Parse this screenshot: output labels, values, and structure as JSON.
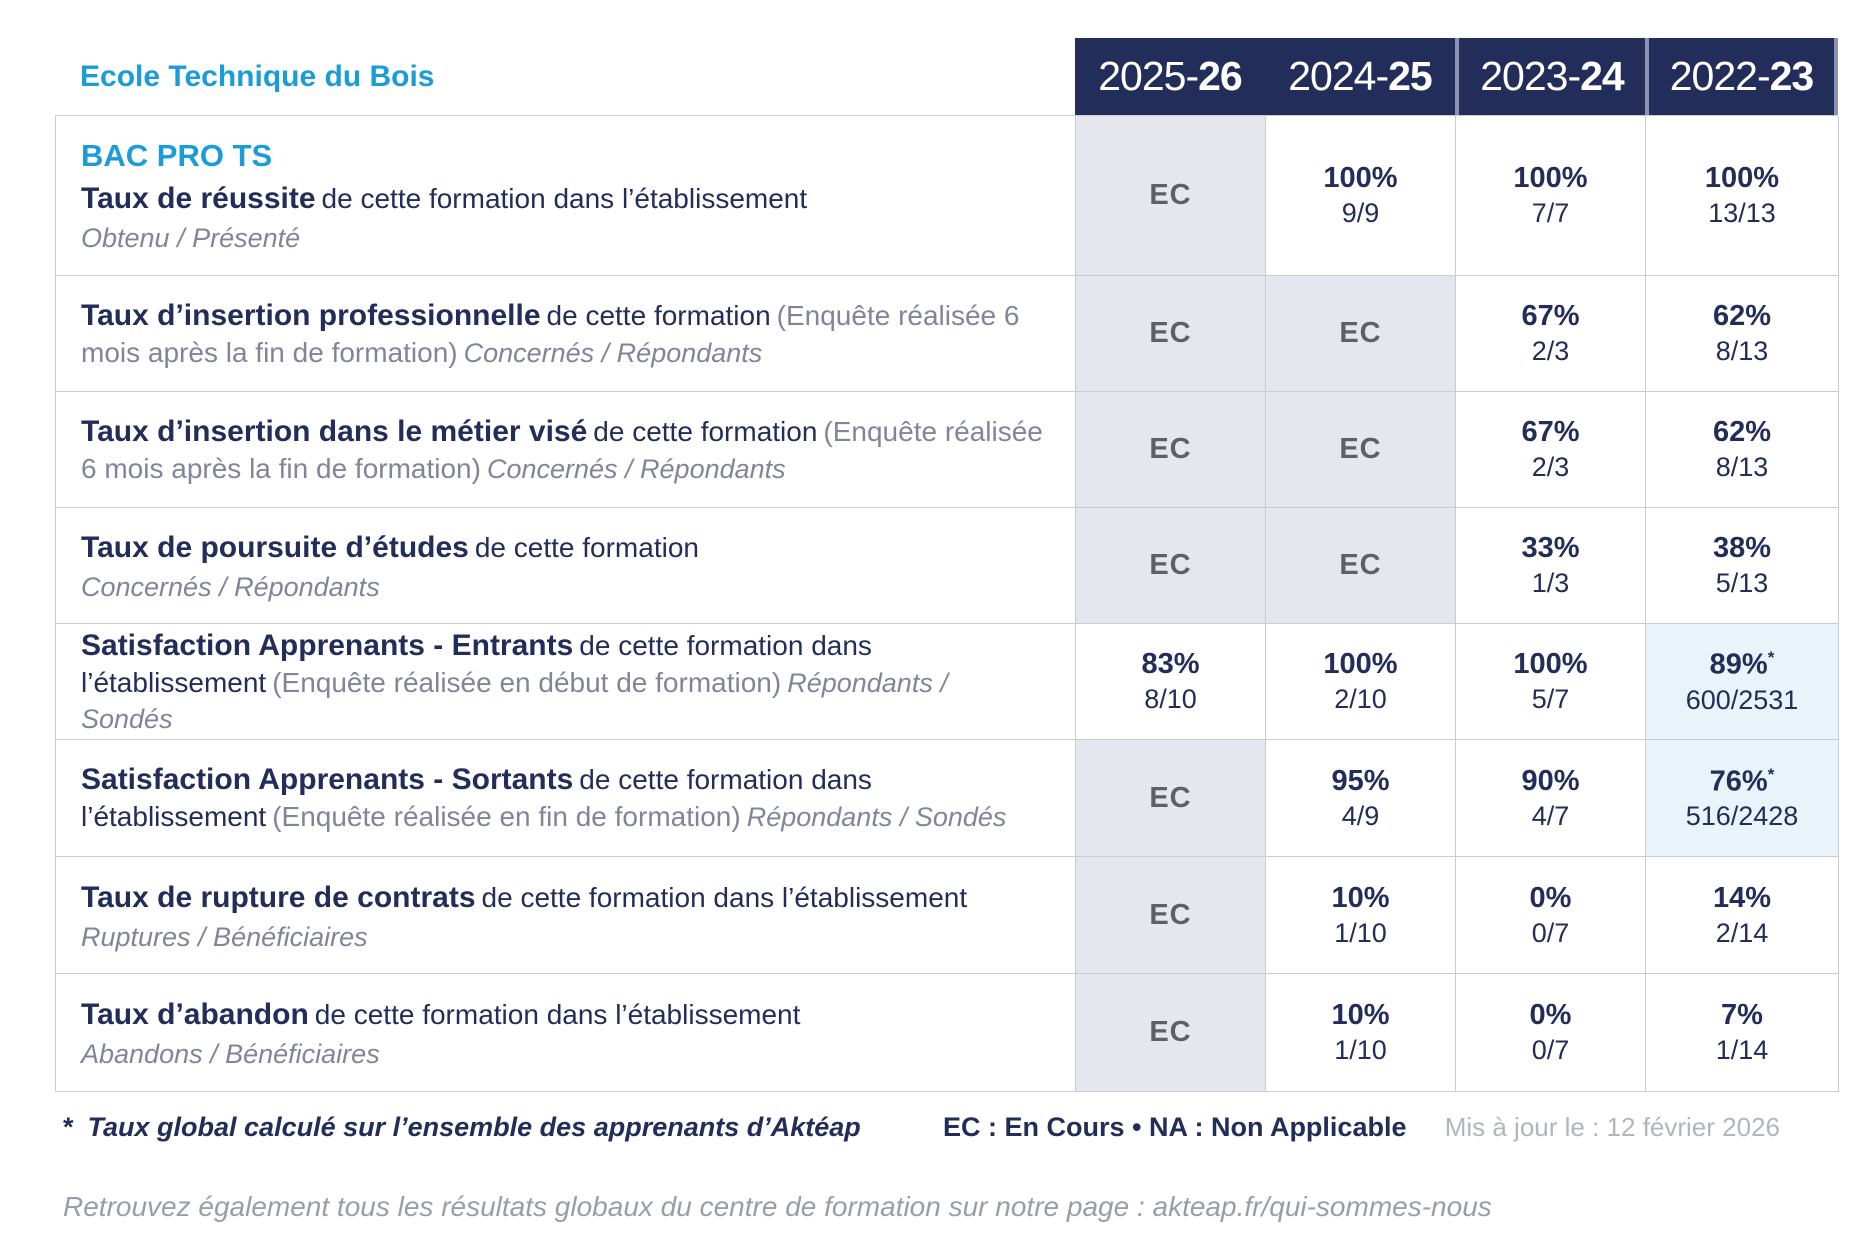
{
  "page": {
    "title": "Ecole Technique du Bois",
    "footnote_star": "*",
    "footnote": "Taux global calculé sur l’ensemble des apprenants d’Aktéap",
    "legend": "EC : En Cours  •  NA : Non Applicable",
    "updated": "Mis à jour le : 12 février 2026",
    "bottom_line": "Retrouvez également tous les résultats globaux du centre de formation sur notre page : akteap.fr/qui-sommes-nous"
  },
  "colors": {
    "accent_blue": "#1a9cd8",
    "navy": "#232d5a",
    "ec_cell_bg": "#e6e6ef",
    "highlight_cell_bg": "#e9f3fa",
    "grid_border": "#c9cbd6"
  },
  "columns": [
    {
      "prefix": "2025-",
      "bold": "26"
    },
    {
      "prefix": "2024-",
      "bold": "25"
    },
    {
      "prefix": "2023-",
      "bold": "24"
    },
    {
      "prefix": "2022-",
      "bold": "23"
    }
  ],
  "rows": [
    {
      "heading": "BAC PRO TS",
      "label_bold": "Taux de réussite",
      "label_normal": "de cette formation dans l’établissement",
      "label_paren": "",
      "label_sub": "Obtenu / Présenté",
      "sub_block": true,
      "cells": [
        {
          "ec": true,
          "text": "EC"
        },
        {
          "pct": "100%",
          "frac": "9/9"
        },
        {
          "pct": "100%",
          "frac": "7/7"
        },
        {
          "pct": "100%",
          "frac": "13/13"
        }
      ]
    },
    {
      "heading": "",
      "label_bold": "Taux d’insertion professionnelle",
      "label_normal": "de cette formation",
      "label_paren": "(Enquête réalisée 6 mois après la fin de formation)",
      "label_sub": "Concernés / Répondants",
      "sub_block": false,
      "cells": [
        {
          "ec": true,
          "text": "EC"
        },
        {
          "ec": true,
          "text": "EC"
        },
        {
          "pct": "67%",
          "frac": "2/3"
        },
        {
          "pct": "62%",
          "frac": "8/13"
        }
      ]
    },
    {
      "heading": "",
      "label_bold": "Taux d’insertion dans le métier visé",
      "label_normal": "de cette formation",
      "label_paren": "(Enquête réalisée 6 mois après la fin de formation)",
      "label_sub": "Concernés / Répondants",
      "sub_block": false,
      "cells": [
        {
          "ec": true,
          "text": "EC"
        },
        {
          "ec": true,
          "text": "EC"
        },
        {
          "pct": "67%",
          "frac": "2/3"
        },
        {
          "pct": "62%",
          "frac": "8/13"
        }
      ]
    },
    {
      "heading": "",
      "label_bold": "Taux de poursuite d’études",
      "label_normal": "de cette formation",
      "label_paren": "",
      "label_sub": "Concernés / Répondants",
      "sub_block": true,
      "cells": [
        {
          "ec": true,
          "text": "EC"
        },
        {
          "ec": true,
          "text": "EC"
        },
        {
          "pct": "33%",
          "frac": "1/3"
        },
        {
          "pct": "38%",
          "frac": "5/13"
        }
      ]
    },
    {
      "heading": "",
      "label_bold": "Satisfaction Apprenants - Entrants",
      "label_normal": "de cette formation dans l’établissement",
      "label_paren": "(Enquête réalisée en début de formation)",
      "label_sub": "Répondants / Sondés",
      "sub_block": false,
      "cells": [
        {
          "pct": "83%",
          "frac": "8/10"
        },
        {
          "pct": "100%",
          "frac": "2/10"
        },
        {
          "pct": "100%",
          "frac": "5/7"
        },
        {
          "pct": "89%",
          "frac": "600/2531",
          "star": "*",
          "highlight": true
        }
      ]
    },
    {
      "heading": "",
      "label_bold": "Satisfaction Apprenants - Sortants",
      "label_normal": "de cette formation dans l’établissement",
      "label_paren": "(Enquête réalisée en fin de formation)",
      "label_sub": "Répondants / Sondés",
      "sub_block": false,
      "cells": [
        {
          "ec": true,
          "text": "EC"
        },
        {
          "pct": "95%",
          "frac": "4/9"
        },
        {
          "pct": "90%",
          "frac": "4/7"
        },
        {
          "pct": "76%",
          "frac": "516/2428",
          "star": "*",
          "highlight": true
        }
      ]
    },
    {
      "heading": "",
      "label_bold": "Taux de rupture de contrats",
      "label_normal": "de cette formation dans l’établissement",
      "label_paren": "",
      "label_sub": "Ruptures / Bénéficiaires",
      "sub_block": true,
      "cells": [
        {
          "ec": true,
          "text": "EC"
        },
        {
          "pct": "10%",
          "frac": "1/10"
        },
        {
          "pct": "0%",
          "frac": "0/7"
        },
        {
          "pct": "14%",
          "frac": "2/14"
        }
      ]
    },
    {
      "heading": "",
      "label_bold": "Taux d’abandon",
      "label_normal": "de cette formation dans l’établissement",
      "label_paren": "",
      "label_sub": "Abandons / Bénéficiaires",
      "sub_block": true,
      "cells": [
        {
          "ec": true,
          "text": "EC"
        },
        {
          "pct": "10%",
          "frac": "1/10"
        },
        {
          "pct": "0%",
          "frac": "0/7"
        },
        {
          "pct": "7%",
          "frac": "1/14"
        }
      ]
    }
  ]
}
